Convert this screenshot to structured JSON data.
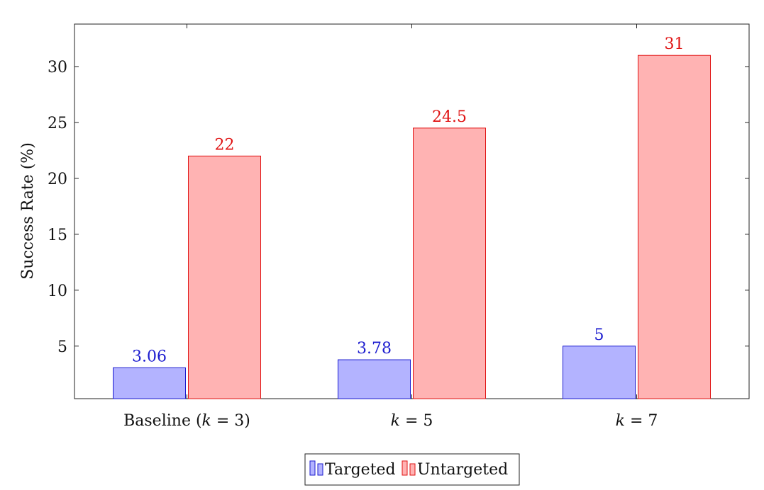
{
  "chart_data": {
    "type": "bar",
    "categories": [
      "Baseline (k = 3)",
      "k = 5",
      "k = 7"
    ],
    "category_parts": [
      {
        "pre": "Baseline (",
        "var": "k",
        "post": " = 3)"
      },
      {
        "pre": "",
        "var": "k",
        "post": " = 5"
      },
      {
        "pre": "",
        "var": "k",
        "post": " = 7"
      }
    ],
    "series": [
      {
        "name": "Targeted",
        "values": [
          3.06,
          3.78,
          5
        ],
        "labels": [
          "3.06",
          "3.78",
          "5"
        ],
        "fill": "#b3b3ff",
        "stroke": "#1c1ccf",
        "label_color": "#1c1ccf"
      },
      {
        "name": "Untargeted",
        "values": [
          22,
          24.5,
          31
        ],
        "labels": [
          "22",
          "24.5",
          "31"
        ],
        "fill": "#ffb3b3",
        "stroke": "#e01414",
        "label_color": "#e01414"
      }
    ],
    "ylabel": "Success Rate (%)",
    "xlabel": "",
    "title": "",
    "ylim": [
      0.3,
      33.8
    ],
    "yticks": [
      5,
      10,
      15,
      20,
      25,
      30
    ],
    "grid": false,
    "legend_position": "bottom-center"
  }
}
